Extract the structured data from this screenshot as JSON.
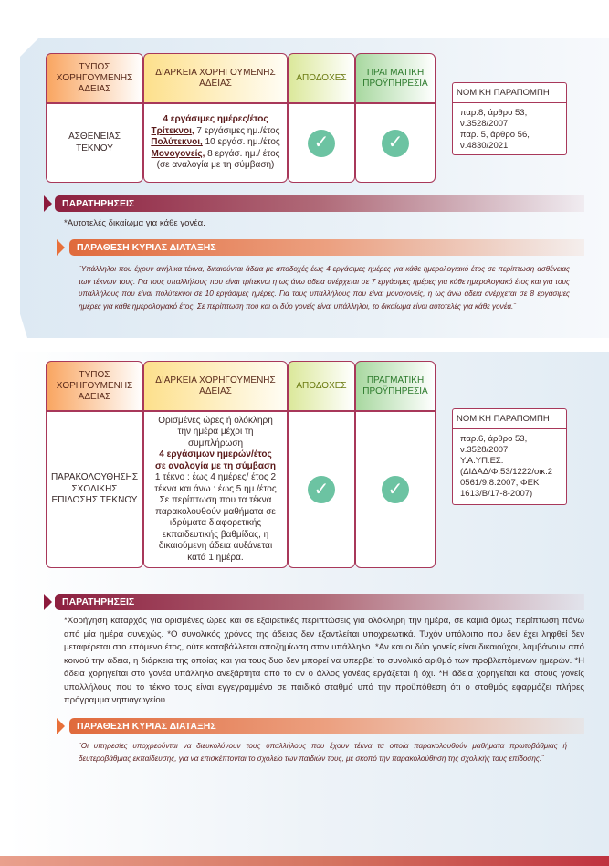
{
  "colors": {
    "border": "#a8385a",
    "check": "#6cc3a2",
    "remarks_bar": "#8d2040",
    "provision_bar": "#e06a3c"
  },
  "headers": {
    "type": "ΤΥΠΟΣ ΧΟΡΗΓΟΥΜΕΝΗΣ ΑΔΕΙΑΣ",
    "duration": "ΔΙΑΡΚΕΙΑ ΧΟΡΗΓΟΥΜΕΝΗΣ ΑΔΕΙΑΣ",
    "pay": "ΑΠΟΔΟΧΕΣ",
    "service": "ΠΡΑΓΜΑΤΙΚΗ ΠΡΟΫΠΗΡΕΣΙΑ",
    "legal": "ΝΟΜΙΚΗ ΠΑΡΑΠΟΜΠΗ"
  },
  "section1": {
    "type": "ΑΣΘΕΝΕΙΑΣ ΤΕΚΝΟΥ",
    "duration_bold": "4 εργάσιμες ημέρες/έτος",
    "duration_lines": [
      {
        "label": "Τρίτεκνοι,",
        "text": " 7 εργάσιμες ημ./έτος"
      },
      {
        "label": "Πολύτεκνοι,",
        "text": " 10 εργάσ. ημ./έτος"
      },
      {
        "label": "Μονογονείς,",
        "text": " 8 εργάσ. ημ./ έτος"
      }
    ],
    "duration_note": "(σε αναλογία με τη σύμβαση)",
    "pay": "check-icon",
    "service": "check-icon",
    "legal": "παρ.8, άρθρο 53,\nν.3528/2007\nπαρ. 5, άρθρο 56,\nν.4830/2021",
    "remarks_title": "ΠΑΡΑΤΗΡΗΣΕΙΣ",
    "remarks": "*Αυτοτελές δικαίωμα για κάθε γονέα.",
    "provision_title": "ΠΑΡΑΘΕΣΗ ΚΥΡΙΑΣ ΔΙΑΤΑΞΗΣ",
    "provision": "¨Υπάλληλοι που έχουν ανήλικα τέκνα, δικαιούνται άδεια με αποδοχές έως 4 εργάσιμες ημέρες για κάθε ημερολογιακό έτος σε περίπτωση ασθένειας των τέκνων τους. Για  τους υπαλλήλους που είναι τρίτεκνοι η ως άνω άδεια ανέρχεται σε 7 εργάσιμες ημέρες για κάθε ημερολογιακό έτος και για τους υπαλλήλους που είναι πολύτεκνοι σε 10 εργάσιμες ημέρες. Για τους υπαλλήλους που είναι μονογονείς, η ως άνω άδεια ανέρχεται σε 8 εργάσιμες ημέρες για κάθε ημερολογιακό έτος. Σε περίπτωση που και οι δύο γονείς είναι υπάλληλοι, το δικαίωμα είναι αυτοτελές για κάθε γονέα.¨"
  },
  "section2": {
    "type": "ΠΑΡΑΚΟΛΟΥΘΗΣΗΣ ΣΧΟΛΙΚΗΣ ΕΠΙΔΟΣΗΣ ΤΕΚΝΟΥ",
    "duration_intro": "Ορισμένες ώρες ή ολόκληρη την ημέρα μέχρι τη συμπλήρωση",
    "duration_bold": "4 εργάσιμων ημερών/έτος σε αναλογία με τη σύμβαση",
    "duration_rest": "1 τέκνο : έως 4 ημέρες/ έτος 2 τέκνα και άνω : έως 5 ημ./έτος Σε περίπτωση που τα τέκνα παρακολουθούν μαθήματα σε ιδρύματα διαφορετικής εκπαιδευτικής βαθμίδας, η δικαιούμενη άδεια αυξάνεται κατά 1 ημέρα.",
    "pay": "check-icon",
    "service": "check-icon",
    "legal": "παρ.6, άρθρο 53,\nν.3528/2007\nΥ.Α.ΥΠ.ΕΣ.\n(ΔΙΔΑΔ/Φ.53/1222/οικ.2\n 0561/9.8.2007, ΦΕΚ\n1613/Β/17-8-2007)",
    "remarks_title": "ΠΑΡΑΤΗΡΗΣΕΙΣ",
    "remarks": "*Χορήγηση καταρχάς για ορισμένες ώρες και σε εξαιρετικές περιπτώσεις για ολόκληρη την ημέρα, σε καμιά όμως περίπτωση πάνω από μία ημέρα συνεχώς. *Ο συνολικός χρόνος της άδειας δεν εξαντλείται υποχρεωτικά. Τυχόν υπόλοιπο που δεν έχει ληφθεί δεν μεταφέρεται στο επόμενο έτος, ούτε καταβάλλεται αποζημίωση στον υπάλληλο. *Αν και οι δύο γονείς είναι δικαιούχοι, λαμβάνουν από κοινού την άδεια, η διάρκεια της οποίας και για τους δυο δεν μπορεί να υπερβεί το συνολικό αριθμό των προβλεπόμενων ημερών. *Η άδεια χορηγείται στο γονέα υπάλληλο ανεξάρτητα από το αν ο άλλος γονέας εργάζεται ή όχι. *Η άδεια χορηγείται και στους γονείς  υπαλλήλους που το τέκνο τους είναι εγγεγραμμένο σε παιδικό σταθμό υπό την προϋπόθεση ότι ο σταθμός εφαρμόζει πλήρες πρόγραμμα νηπιαγωγείου.",
    "provision_title": "ΠΑΡΑΘΕΣΗ ΚΥΡΙΑΣ ΔΙΑΤΑΞΗΣ",
    "provision": "¨Οι υπηρεσίες υποχρεούνται να διευκολύνουν τους υπαλλήλους που έχουν τέκνα τα οποία παρακολουθούν μαθήματα πρωτοβάθμιας ή δευτεροβάθμιας εκπαίδευσης, για να επισκέπτονται το σχολείο των παιδιών τους, με σκοπό την παρακολούθηση της σχολικής τους επίδοσης.¨"
  }
}
